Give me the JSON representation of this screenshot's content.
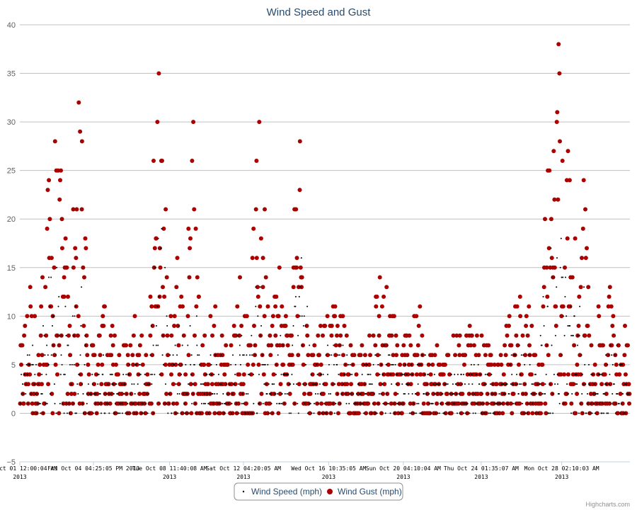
{
  "chart_data": {
    "type": "scatter",
    "title": "Wind Speed and Gust",
    "xlabel": "",
    "ylabel": "",
    "ylim": [
      -5,
      40
    ],
    "yticks": [
      "−5",
      "0",
      "5",
      "10",
      "15",
      "20",
      "25",
      "30",
      "35",
      "40"
    ],
    "yticks_values": [
      -5,
      0,
      5,
      10,
      15,
      20,
      25,
      30,
      35,
      40
    ],
    "x_range": [
      "2013-10-01T00:00",
      "2013-10-31T12:00"
    ],
    "x_ticks": [
      {
        "label": "Tue Oct 01 12:00:04 AM",
        "year": "2013",
        "at": "2013-10-01T00:00"
      },
      {
        "label": "Fri Oct 04 04:25:05 PM 2013",
        "year": "",
        "at": "2013-10-04T16:25"
      },
      {
        "label": "Tue Oct 08 11:40:08 AM",
        "year": "2013",
        "at": "2013-10-08T11:40"
      },
      {
        "label": "Sat Oct 12 04:20:05 AM",
        "year": "2013",
        "at": "2013-10-12T04:20"
      },
      {
        "label": "Wed Oct 16 10:35:05 AM",
        "year": "2013",
        "at": "2013-10-16T10:35"
      },
      {
        "label": "Sun Oct 20 04:10:04 AM",
        "year": "2013",
        "at": "2013-10-20T04:10"
      },
      {
        "label": "Thu Oct 24 01:35:07 AM",
        "year": "2013",
        "at": "2013-10-24T01:35"
      },
      {
        "label": "Mon Oct 28 02:10:03 AM",
        "year": "2013",
        "at": "2013-10-28T02:10"
      }
    ],
    "grid": true,
    "legend_position": "bottom-center",
    "series": [
      {
        "name": "Wind Speed (mph)",
        "color": "#000000",
        "marker": "dot-small"
      },
      {
        "name": "Wind Gust (mph)",
        "color": "#aa0000",
        "marker": "dot-large"
      }
    ],
    "wind_periods": [
      {
        "start": "2013-10-01T00:00",
        "end": "2013-10-02T00:00",
        "gust_peak": 13,
        "speed_peak": 7
      },
      {
        "start": "2013-10-02T00:00",
        "end": "2013-10-03T12:00",
        "gust_peak": 28,
        "speed_peak": 16
      },
      {
        "start": "2013-10-03T12:00",
        "end": "2013-10-04T10:00",
        "gust_peak": 32,
        "speed_peak": 15
      },
      {
        "start": "2013-10-04T10:00",
        "end": "2013-10-06T00:00",
        "gust_peak": 11,
        "speed_peak": 6
      },
      {
        "start": "2013-10-06T00:00",
        "end": "2013-10-07T12:00",
        "gust_peak": 10,
        "speed_peak": 6
      },
      {
        "start": "2013-10-07T12:00",
        "end": "2013-10-08T10:00",
        "gust_peak": 35,
        "speed_peak": 22
      },
      {
        "start": "2013-10-08T10:00",
        "end": "2013-10-09T08:00",
        "gust_peak": 16,
        "speed_peak": 10
      },
      {
        "start": "2013-10-09T08:00",
        "end": "2013-10-10T00:00",
        "gust_peak": 30,
        "speed_peak": 12
      },
      {
        "start": "2013-10-10T00:00",
        "end": "2013-10-11T12:00",
        "gust_peak": 11,
        "speed_peak": 7
      },
      {
        "start": "2013-10-11T12:00",
        "end": "2013-10-12T12:00",
        "gust_peak": 14,
        "speed_peak": 9
      },
      {
        "start": "2013-10-12T12:00",
        "end": "2013-10-13T10:00",
        "gust_peak": 30,
        "speed_peak": 15
      },
      {
        "start": "2013-10-13T10:00",
        "end": "2013-10-14T12:00",
        "gust_peak": 15,
        "speed_peak": 8
      },
      {
        "start": "2013-10-14T12:00",
        "end": "2013-10-15T12:00",
        "gust_peak": 28,
        "speed_peak": 16
      },
      {
        "start": "2013-10-15T12:00",
        "end": "2013-10-18T00:00",
        "gust_peak": 11,
        "speed_peak": 7
      },
      {
        "start": "2013-10-18T00:00",
        "end": "2013-10-20T00:00",
        "gust_peak": 14,
        "speed_peak": 8
      },
      {
        "start": "2013-10-20T00:00",
        "end": "2013-10-22T00:00",
        "gust_peak": 11,
        "speed_peak": 7
      },
      {
        "start": "2013-10-22T00:00",
        "end": "2013-10-25T00:00",
        "gust_peak": 9,
        "speed_peak": 5
      },
      {
        "start": "2013-10-25T00:00",
        "end": "2013-10-27T00:00",
        "gust_peak": 12,
        "speed_peak": 7
      },
      {
        "start": "2013-10-27T00:00",
        "end": "2013-10-28T20:00",
        "gust_peak": 38,
        "speed_peak": 20
      },
      {
        "start": "2013-10-28T20:00",
        "end": "2013-10-29T12:00",
        "gust_peak": 24,
        "speed_peak": 14
      },
      {
        "start": "2013-10-29T12:00",
        "end": "2013-10-31T12:00",
        "gust_peak": 13,
        "speed_peak": 8
      }
    ]
  },
  "credits": "Highcharts.com"
}
